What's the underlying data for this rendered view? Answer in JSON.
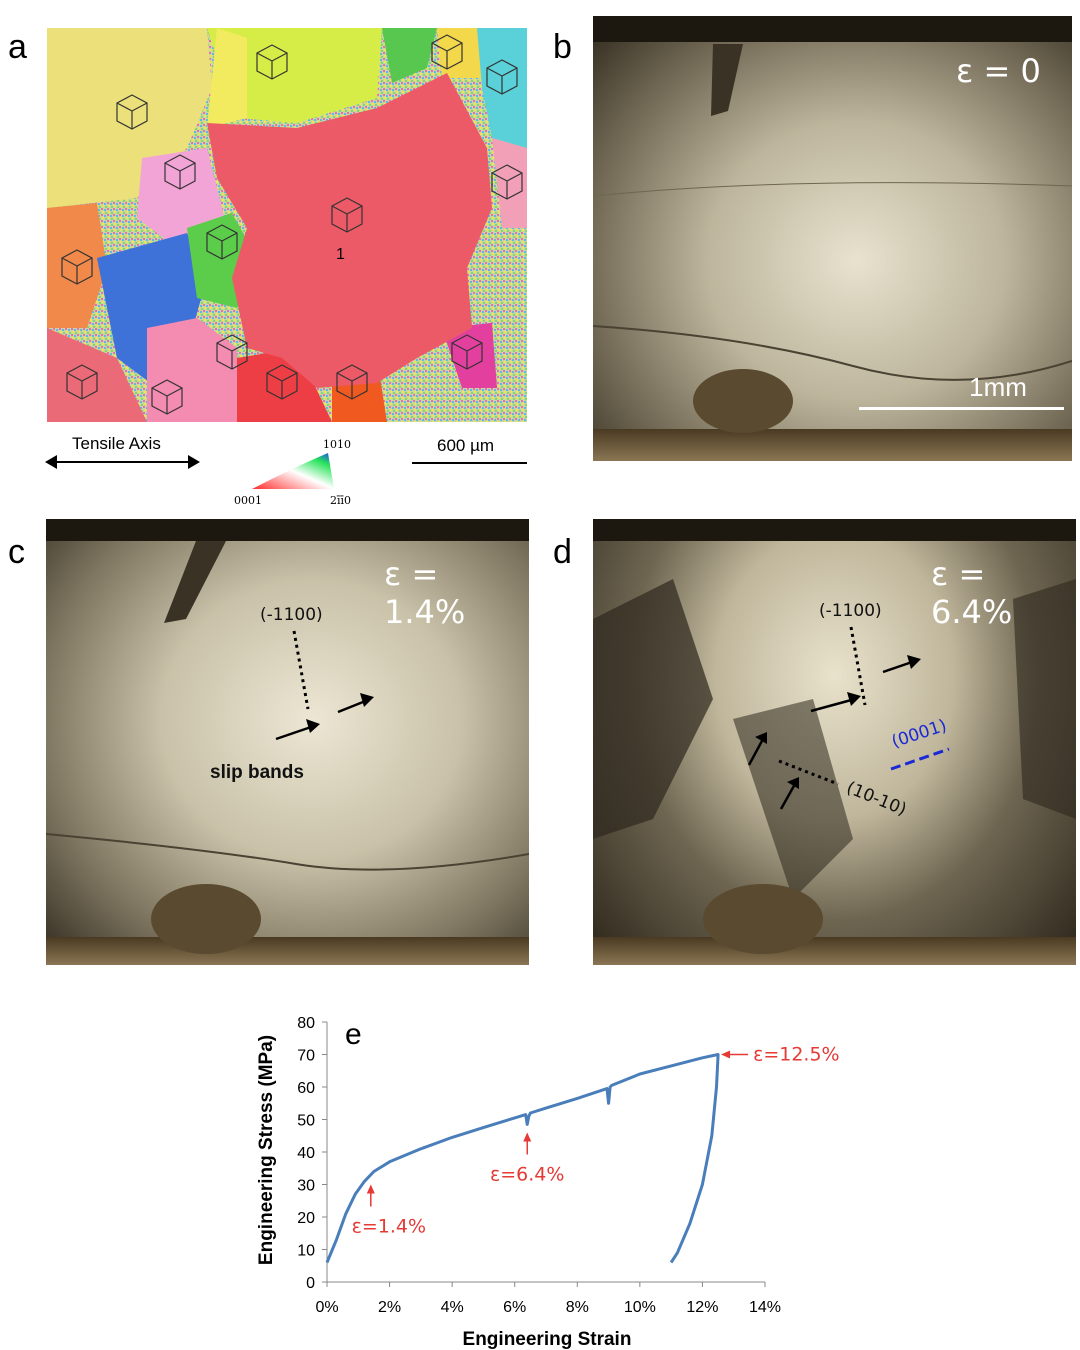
{
  "panels": {
    "a": {
      "letter": "a",
      "grain_label": "1",
      "tensile_axis_label": "Tensile Axis",
      "scale_bar_label": "600 µm",
      "ipf_key": {
        "top": "1010",
        "left": "0001",
        "right": "2īī0"
      }
    },
    "b": {
      "letter": "b",
      "strain_label": "ε = 0",
      "scale_label": "1mm"
    },
    "c": {
      "letter": "c",
      "strain_label": "ε = 1.4%",
      "plane_label": "(-1100)",
      "slip_label": "slip bands"
    },
    "d": {
      "letter": "d",
      "strain_label": "ε = 6.4%",
      "plane_label_1": "(-1100)",
      "plane_label_2": "(0001)",
      "plane_label_3": "(10-10)"
    },
    "e": {
      "letter": "e"
    }
  },
  "chart_data": {
    "type": "line",
    "title": "",
    "xlabel": "Engineering Strain",
    "ylabel": "Engineering Stress (MPa)",
    "xlim": [
      0,
      14
    ],
    "ylim": [
      0,
      80
    ],
    "x_ticks": [
      "0%",
      "2%",
      "4%",
      "6%",
      "8%",
      "10%",
      "12%",
      "14%"
    ],
    "y_ticks": [
      "0",
      "10",
      "20",
      "30",
      "40",
      "50",
      "60",
      "70",
      "80"
    ],
    "series": [
      {
        "color": "#4a7ebb",
        "x": [
          0.0,
          0.3,
          0.6,
          0.9,
          1.2,
          1.5,
          2.0,
          3.0,
          4.0,
          5.0,
          6.0,
          6.35,
          6.4,
          6.45,
          6.5,
          7.0,
          8.0,
          8.95,
          9.0,
          9.05,
          9.1,
          10.0,
          11.0,
          12.0,
          12.5,
          12.45,
          12.3,
          12.0,
          11.6,
          11.2,
          11.0
        ],
        "y": [
          6,
          13,
          21,
          27,
          31,
          34,
          37,
          41,
          44.5,
          47.5,
          50.5,
          51.5,
          48.5,
          51,
          52,
          53.5,
          56.5,
          59.5,
          55,
          60,
          60.5,
          64,
          66.5,
          69,
          70,
          60,
          45,
          30,
          18,
          9,
          6
        ]
      }
    ],
    "annotations": [
      {
        "text": "ε=1.4%",
        "x": 1.4,
        "y": 30,
        "color": "#e53935"
      },
      {
        "text": "ε=6.4%",
        "x": 6.4,
        "y": 46,
        "color": "#e53935"
      },
      {
        "text": "ε=12.5%",
        "x": 12.5,
        "y": 70,
        "color": "#e53935"
      }
    ],
    "grid": false,
    "legend": "none"
  }
}
